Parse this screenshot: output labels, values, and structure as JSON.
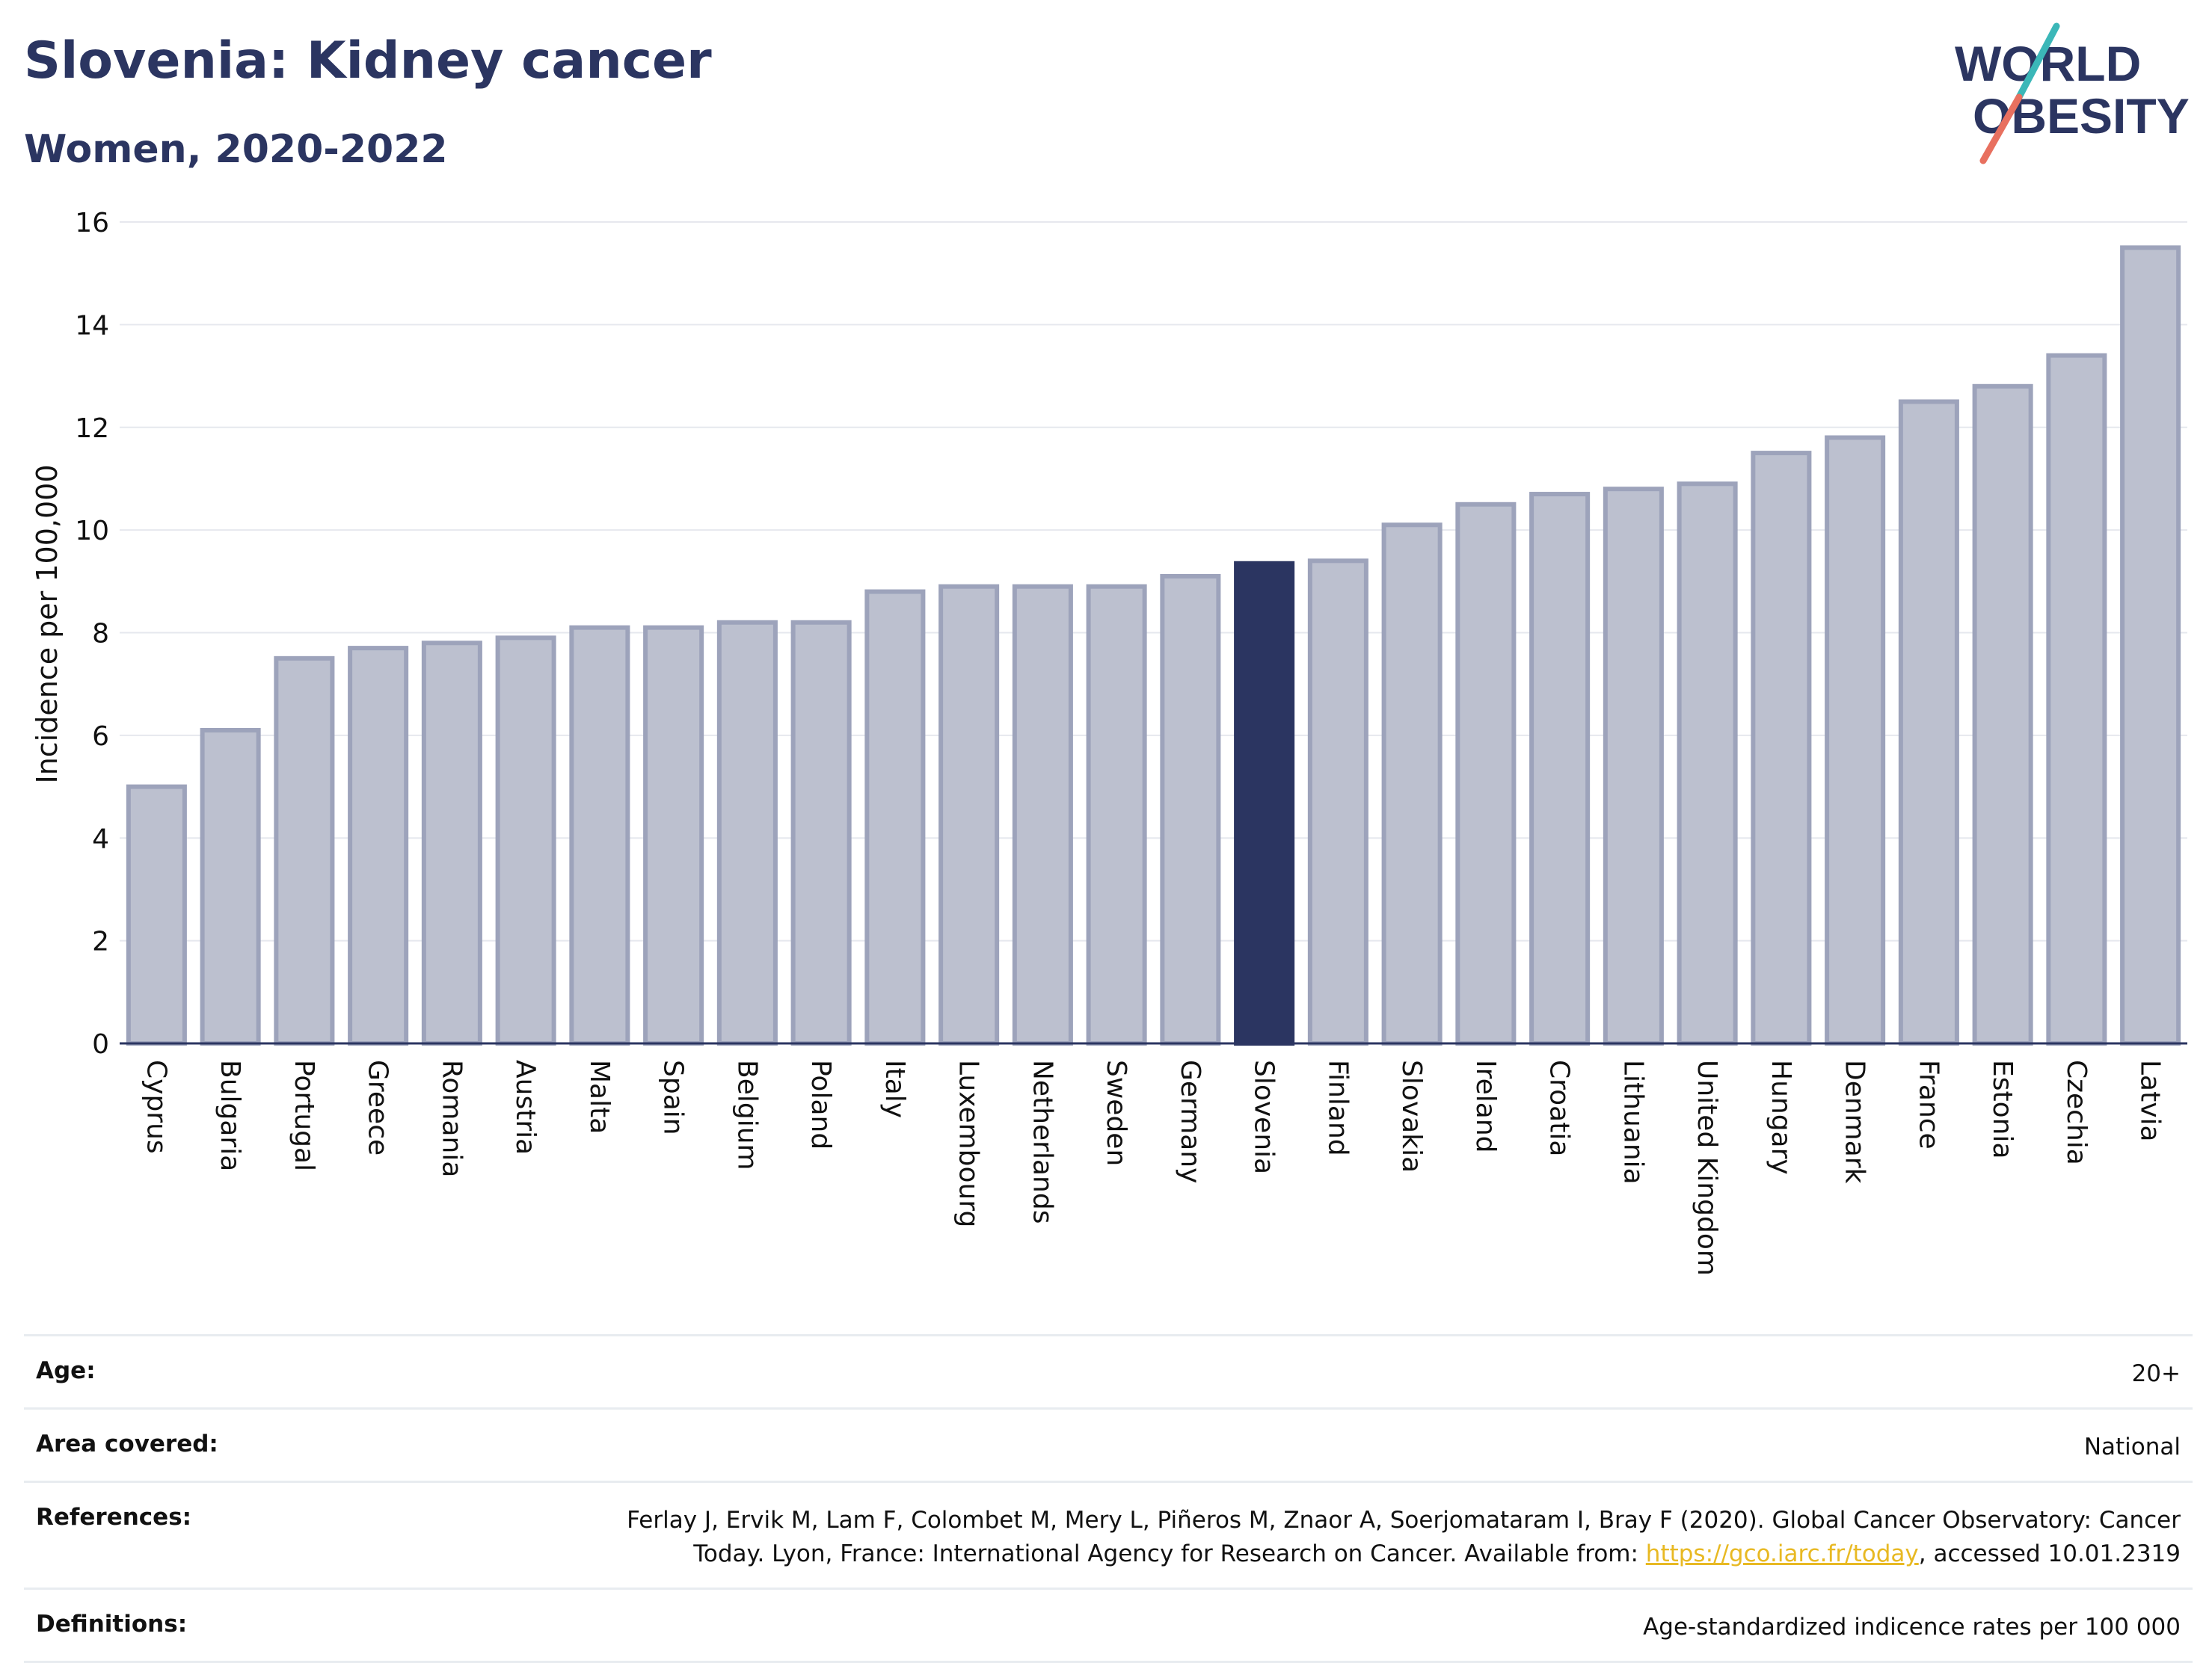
{
  "header": {
    "title": "Slovenia: Kidney cancer",
    "subtitle": "Women, 2020-2022"
  },
  "logo": {
    "line1": "WORLD",
    "line2": "OBESITY",
    "colors": {
      "text": "#2b3561",
      "slash_top": "#3bb7b8",
      "slash_bottom": "#e8705f"
    }
  },
  "chart_data": {
    "type": "bar",
    "ylabel": "Incidence per 100,000",
    "xlabel": "",
    "ylim": [
      0,
      16
    ],
    "yticks": [
      0,
      2,
      4,
      6,
      8,
      10,
      12,
      14,
      16
    ],
    "grid": true,
    "highlight": "Slovenia",
    "colors": {
      "bar": "#bcc0cf",
      "bar_border": "#9da3bb",
      "highlight": "#2b3561"
    },
    "categories": [
      "Cyprus",
      "Bulgaria",
      "Portugal",
      "Greece",
      "Romania",
      "Austria",
      "Malta",
      "Spain",
      "Belgium",
      "Poland",
      "Italy",
      "Luxembourg",
      "Netherlands",
      "Sweden",
      "Germany",
      "Slovenia",
      "Finland",
      "Slovakia",
      "Ireland",
      "Croatia",
      "Lithuania",
      "United Kingdom",
      "Hungary",
      "Denmark",
      "France",
      "Estonia",
      "Czechia",
      "Latvia"
    ],
    "values": [
      5.0,
      6.1,
      7.5,
      7.7,
      7.8,
      7.9,
      8.1,
      8.1,
      8.2,
      8.2,
      8.8,
      8.9,
      8.9,
      8.9,
      9.1,
      9.35,
      9.4,
      10.1,
      10.5,
      10.7,
      10.8,
      10.9,
      11.5,
      11.8,
      12.5,
      12.8,
      13.4,
      15.5
    ]
  },
  "info": {
    "age_label": "Age:",
    "age_value": "20+",
    "area_label": "Area covered:",
    "area_value": "National",
    "references_label": "References:",
    "references_line1": "Ferlay J, Ervik M, Lam F, Colombet M, Mery L, Piñeros M, Znaor A, Soerjomataram I, Bray F (2020). Global Cancer Observatory: Cancer",
    "references_line2_pre": "Today. Lyon, France: International Agency for Research on Cancer. Available from: ",
    "references_link": "https://gco.iarc.fr/today",
    "references_line2_post": ", accessed 10.01.2319",
    "definitions_label": "Definitions:",
    "definitions_value": "Age-standardized indicence rates per 100 000"
  }
}
